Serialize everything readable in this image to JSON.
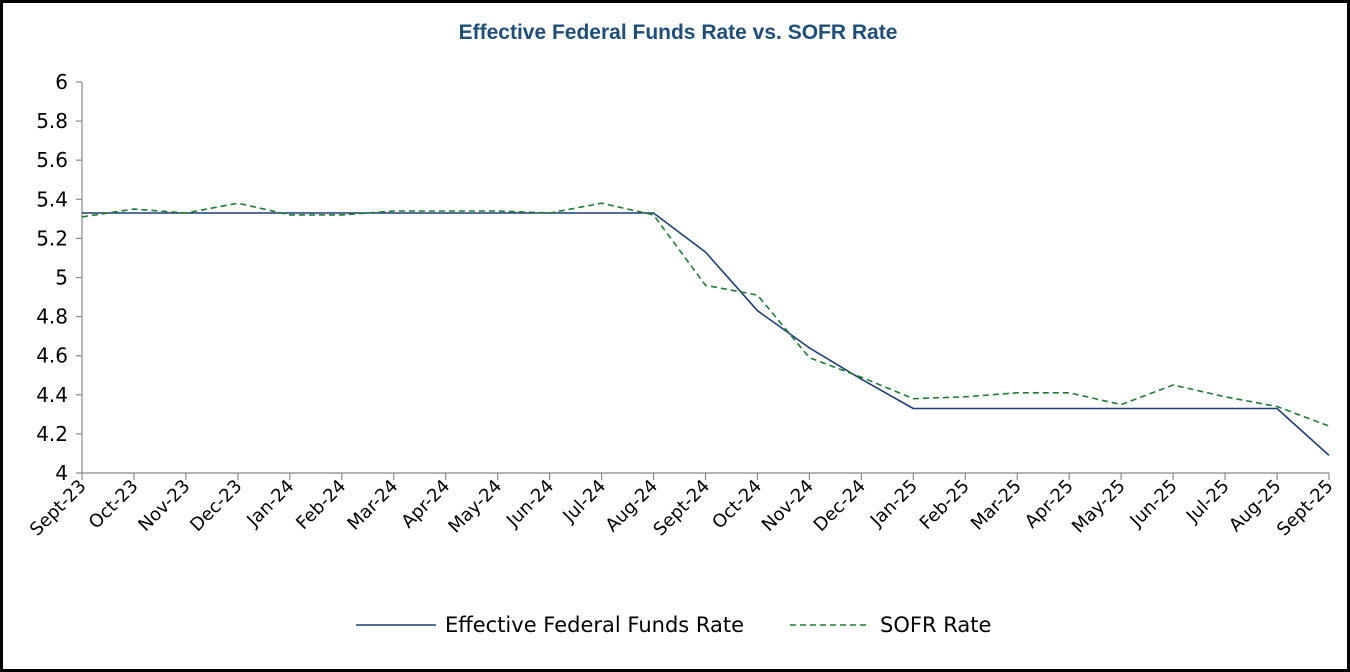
{
  "chart_data": {
    "type": "line",
    "title": "Effective Federal Funds Rate vs. SOFR Rate",
    "xlabel": "",
    "ylabel": "",
    "ylim": [
      4,
      6
    ],
    "yticks": [
      "6",
      "5.8",
      "5.6",
      "5.4",
      "5.2",
      "5",
      "4.8",
      "4.6",
      "4.4",
      "4.2",
      "4"
    ],
    "ytick_values": [
      6,
      5.8,
      5.6,
      5.4,
      5.2,
      5,
      4.8,
      4.6,
      4.4,
      4.2,
      4
    ],
    "categories": [
      "Sept-23",
      "Oct-23",
      "Nov-23",
      "Dec-23",
      "Jan-24",
      "Feb-24",
      "Mar-24",
      "Apr-24",
      "May-24",
      "Jun-24",
      "Jul-24",
      "Aug-24",
      "Sept-24",
      "Oct-24",
      "Nov-24",
      "Dec-24",
      "Jan-25",
      "Feb-25",
      "Mar-25",
      "Apr-25",
      "May-25",
      "Jun-25",
      "Jul-25",
      "Aug-25",
      "Sept-25"
    ],
    "series": [
      {
        "name": "Effective Federal Funds Rate",
        "color": "#1f3f77",
        "style": "solid",
        "values": [
          5.33,
          5.33,
          5.33,
          5.33,
          5.33,
          5.33,
          5.33,
          5.33,
          5.33,
          5.33,
          5.33,
          5.33,
          5.13,
          4.83,
          4.64,
          4.48,
          4.33,
          4.33,
          4.33,
          4.33,
          4.33,
          4.33,
          4.33,
          4.33,
          4.09
        ]
      },
      {
        "name": "SOFR Rate",
        "color": "#1e7b34",
        "style": "dashed",
        "values": [
          5.31,
          5.35,
          5.33,
          5.38,
          5.32,
          5.32,
          5.34,
          5.34,
          5.34,
          5.33,
          5.38,
          5.32,
          4.96,
          4.91,
          4.59,
          4.49,
          4.38,
          4.39,
          4.41,
          4.41,
          4.35,
          4.45,
          4.39,
          4.34,
          4.24
        ]
      }
    ],
    "grid": false,
    "legend_position": "bottom"
  }
}
